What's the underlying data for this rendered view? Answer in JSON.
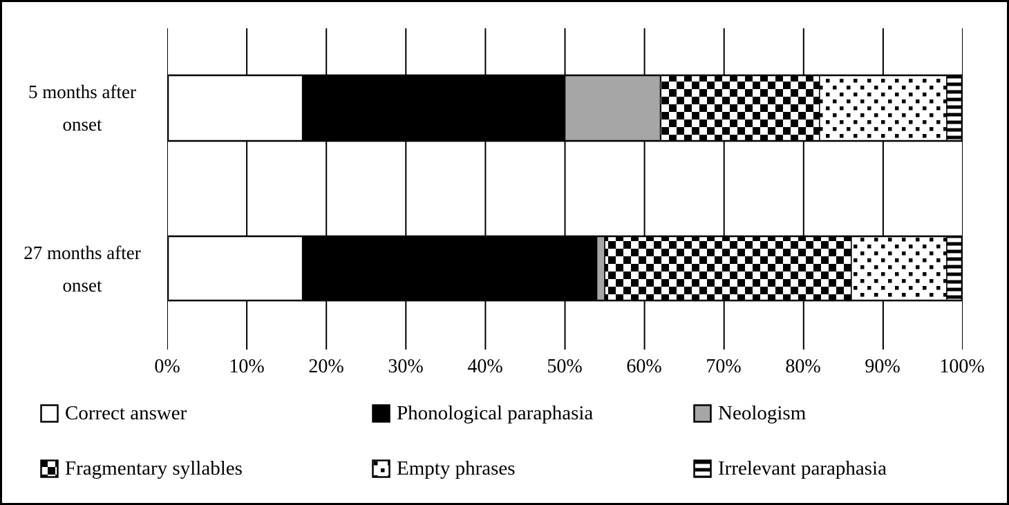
{
  "chart_data": {
    "type": "bar",
    "orientation": "horizontal",
    "stacked": true,
    "unit": "percent",
    "title": "",
    "xlabel": "",
    "ylabel": "",
    "xlim": [
      0,
      100
    ],
    "grid": "vertical",
    "legend_position": "bottom",
    "categories": [
      [
        "5 months after",
        "onset"
      ],
      [
        "27 months after",
        "onset"
      ]
    ],
    "x_ticks": [
      0,
      10,
      20,
      30,
      40,
      50,
      60,
      70,
      80,
      90,
      100
    ],
    "x_tick_labels": [
      "0%",
      "10%",
      "20%",
      "30%",
      "40%",
      "50%",
      "60%",
      "70%",
      "80%",
      "90%",
      "100%"
    ],
    "series": [
      {
        "name": "Correct answer",
        "fill": "white",
        "values": [
          17,
          17
        ]
      },
      {
        "name": "Phonological paraphasia",
        "fill": "black",
        "values": [
          33,
          37
        ]
      },
      {
        "name": "Neologism",
        "fill": "#a6a6a6",
        "values": [
          12,
          1
        ]
      },
      {
        "name": "Fragmentary syllables",
        "fill": "checkerboard",
        "values": [
          20,
          31
        ]
      },
      {
        "name": "Empty phrases",
        "fill": "square-dots",
        "values": [
          16,
          12
        ]
      },
      {
        "name": "Irrelevant paraphasia",
        "fill": "horizontal-lines",
        "values": [
          2,
          2
        ]
      }
    ]
  },
  "colors": {
    "foreground": "#000000",
    "background": "#ffffff",
    "neologism_gray": "#a6a6a6"
  }
}
